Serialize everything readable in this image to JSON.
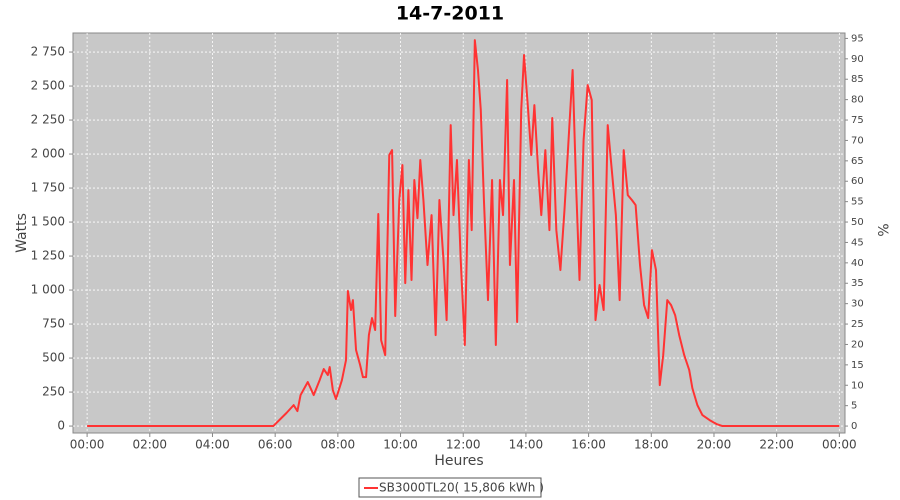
{
  "chart_data": {
    "type": "line",
    "title": "14-7-2011",
    "x_label": "Heures",
    "y_label": "Watts",
    "y2_label": "%",
    "xlim": [
      -0.45,
      24.18
    ],
    "xticks": [
      {
        "value": 0,
        "label": "00:00"
      },
      {
        "value": 2,
        "label": "02:00"
      },
      {
        "value": 4,
        "label": "04:00"
      },
      {
        "value": 6,
        "label": "06:00"
      },
      {
        "value": 8,
        "label": "08:00"
      },
      {
        "value": 10,
        "label": "10:00"
      },
      {
        "value": 12,
        "label": "12:00"
      },
      {
        "value": 14,
        "label": "14:00"
      },
      {
        "value": 16,
        "label": "16:00"
      },
      {
        "value": 18,
        "label": "18:00"
      },
      {
        "value": 20,
        "label": "20:00"
      },
      {
        "value": 22,
        "label": "22:00"
      },
      {
        "value": 24,
        "label": "00:00"
      }
    ],
    "ylim": [
      -51,
      2890
    ],
    "yticks": [
      0,
      250,
      500,
      750,
      {
        "value": 1000,
        "label": "1 000"
      },
      {
        "value": 1250,
        "label": "1 250"
      },
      {
        "value": 1500,
        "label": "1 500"
      },
      {
        "value": 1750,
        "label": "1 750"
      },
      {
        "value": 2000,
        "label": "2 000"
      },
      {
        "value": 2250,
        "label": "2 250"
      },
      {
        "value": 2500,
        "label": "2 500"
      },
      {
        "value": 2750,
        "label": "2 750"
      }
    ],
    "y2lim": [
      -1.7,
      96.33
    ],
    "y2ticks": [
      0,
      5,
      10,
      15,
      20,
      25,
      30,
      35,
      40,
      45,
      50,
      55,
      60,
      65,
      70,
      75,
      80,
      85,
      90,
      95
    ],
    "grid": true,
    "legend": "bottom",
    "x": [
      0,
      5.94,
      6.36,
      6.59,
      6.71,
      6.81,
      7.04,
      7.23,
      7.42,
      7.55,
      7.68,
      7.74,
      7.84,
      7.94,
      8.13,
      8.26,
      8.32,
      8.42,
      8.48,
      8.58,
      8.71,
      8.8,
      8.9,
      8.99,
      9.09,
      9.19,
      9.29,
      9.38,
      9.51,
      9.64,
      9.73,
      9.83,
      9.96,
      10.06,
      10.15,
      10.25,
      10.35,
      10.44,
      10.54,
      10.63,
      10.73,
      10.86,
      10.99,
      11.12,
      11.24,
      11.37,
      11.47,
      11.6,
      11.69,
      11.8,
      11.92,
      12.05,
      12.18,
      12.27,
      12.37,
      12.47,
      12.56,
      12.66,
      12.79,
      12.92,
      13.04,
      13.17,
      13.27,
      13.4,
      13.49,
      13.62,
      13.72,
      13.85,
      13.94,
      14.07,
      14.17,
      14.27,
      14.39,
      14.49,
      14.62,
      14.75,
      14.84,
      14.97,
      15.1,
      15.23,
      15.36,
      15.49,
      15.6,
      15.71,
      15.84,
      15.97,
      16.1,
      16.22,
      16.35,
      16.48,
      16.61,
      16.74,
      16.87,
      16.99,
      17.12,
      17.25,
      17.38,
      17.5,
      17.64,
      17.77,
      17.9,
      18.02,
      18.15,
      18.27,
      18.38,
      18.51,
      18.63,
      18.76,
      18.89,
      19.05,
      19.21,
      19.31,
      19.47,
      19.63,
      19.86,
      20.08,
      20.27,
      24
    ],
    "series": [
      {
        "name": "SB3000TL20( 15,806 kWh )",
        "color": "#ff3333",
        "values": [
          0,
          0,
          96,
          154,
          110,
          228,
          324,
          228,
          338,
          419,
          375,
          434,
          265,
          199,
          338,
          485,
          993,
          853,
          926,
          559,
          449,
          360,
          360,
          669,
          794,
          706,
          1559,
          632,
          522,
          1993,
          2029,
          809,
          1662,
          1919,
          1051,
          1735,
          1074,
          1809,
          1529,
          1956,
          1662,
          1184,
          1551,
          669,
          1662,
          1221,
          779,
          2213,
          1551,
          1956,
          1221,
          596,
          1956,
          1441,
          2838,
          2618,
          2324,
          1662,
          926,
          1809,
          596,
          1809,
          1551,
          2544,
          1184,
          1809,
          765,
          2324,
          2728,
          2324,
          1993,
          2360,
          1882,
          1551,
          2029,
          1441,
          2265,
          1441,
          1147,
          1588,
          2103,
          2618,
          1772,
          1074,
          2103,
          2507,
          2397,
          779,
          1037,
          853,
          2213,
          1882,
          1551,
          926,
          2029,
          1698,
          1662,
          1625,
          1184,
          890,
          794,
          1294,
          1147,
          301,
          522,
          926,
          890,
          816,
          669,
          522,
          412,
          279,
          154,
          81,
          44,
          15,
          0,
          0
        ]
      }
    ]
  }
}
